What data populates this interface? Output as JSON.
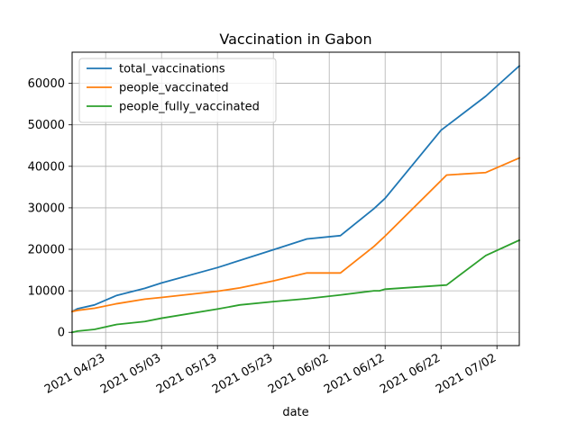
{
  "chart_data": {
    "type": "line",
    "title": "Vaccination in Gabon",
    "xlabel": "date",
    "ylabel": "",
    "xlim": [
      "2021-04-17",
      "2021-07-06"
    ],
    "ylim": [
      -3200,
      67500
    ],
    "grid": true,
    "legend_position": "top-left",
    "x_ticks": [
      "2021-04-23",
      "2021-05-03",
      "2021-05-13",
      "2021-05-23",
      "2021-06-02",
      "2021-06-12",
      "2021-06-22",
      "2021-07-02"
    ],
    "x_tick_labels": [
      "2021 04/23",
      "2021 05/03",
      "2021 05/13",
      "2021 05/23",
      "2021 06/02",
      "2021 06/12",
      "2021 06/22",
      "2021 07/02"
    ],
    "y_ticks": [
      0,
      10000,
      20000,
      30000,
      40000,
      50000,
      60000
    ],
    "y_tick_labels": [
      "0",
      "10000",
      "20000",
      "30000",
      "40000",
      "50000",
      "60000"
    ],
    "series": [
      {
        "name": "total_vaccinations",
        "color": "#1f77b4",
        "points": [
          [
            "2021-04-17",
            5000
          ],
          [
            "2021-04-18",
            5700
          ],
          [
            "2021-04-21",
            6600
          ],
          [
            "2021-04-25",
            8900
          ],
          [
            "2021-04-30",
            10600
          ],
          [
            "2021-05-03",
            11900
          ],
          [
            "2021-05-13",
            15600
          ],
          [
            "2021-05-23",
            19900
          ],
          [
            "2021-05-29",
            22500
          ],
          [
            "2021-06-04",
            23300
          ],
          [
            "2021-06-10",
            29800
          ],
          [
            "2021-06-12",
            32300
          ],
          [
            "2021-06-22",
            48700
          ],
          [
            "2021-06-30",
            56900
          ],
          [
            "2021-07-06",
            64200
          ]
        ]
      },
      {
        "name": "people_vaccinated",
        "color": "#ff7f0e",
        "points": [
          [
            "2021-04-17",
            5000
          ],
          [
            "2021-04-18",
            5300
          ],
          [
            "2021-04-21",
            5800
          ],
          [
            "2021-04-25",
            6900
          ],
          [
            "2021-04-30",
            8000
          ],
          [
            "2021-05-03",
            8400
          ],
          [
            "2021-05-13",
            9900
          ],
          [
            "2021-05-17",
            10700
          ],
          [
            "2021-05-23",
            12400
          ],
          [
            "2021-05-29",
            14300
          ],
          [
            "2021-06-04",
            14300
          ],
          [
            "2021-06-10",
            20700
          ],
          [
            "2021-06-12",
            23200
          ],
          [
            "2021-06-23",
            37900
          ],
          [
            "2021-06-30",
            38500
          ],
          [
            "2021-07-06",
            42000
          ]
        ]
      },
      {
        "name": "people_fully_vaccinated",
        "color": "#2ca02c",
        "points": [
          [
            "2021-04-17",
            0
          ],
          [
            "2021-04-18",
            300
          ],
          [
            "2021-04-21",
            700
          ],
          [
            "2021-04-25",
            1900
          ],
          [
            "2021-04-30",
            2600
          ],
          [
            "2021-05-03",
            3400
          ],
          [
            "2021-05-13",
            5600
          ],
          [
            "2021-05-17",
            6600
          ],
          [
            "2021-05-23",
            7400
          ],
          [
            "2021-05-29",
            8100
          ],
          [
            "2021-06-04",
            9000
          ],
          [
            "2021-06-10",
            10000
          ],
          [
            "2021-06-11",
            10000
          ],
          [
            "2021-06-12",
            10400
          ],
          [
            "2021-06-23",
            11400
          ],
          [
            "2021-06-30",
            18500
          ],
          [
            "2021-07-06",
            22200
          ]
        ]
      }
    ]
  }
}
